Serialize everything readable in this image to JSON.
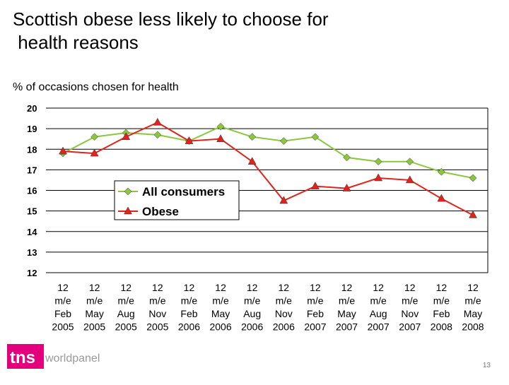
{
  "chart_data": {
    "type": "line",
    "title": "Scottish obese less likely to choose for health reasons",
    "subtitle": "% of occasions chosen for health",
    "categories": [
      [
        "12",
        "m/e",
        "Feb",
        "2005"
      ],
      [
        "12",
        "m/e",
        "May",
        "2005"
      ],
      [
        "12",
        "m/e",
        "Aug",
        "2005"
      ],
      [
        "12",
        "m/e",
        "Nov",
        "2005"
      ],
      [
        "12",
        "m/e",
        "Feb",
        "2006"
      ],
      [
        "12",
        "m/e",
        "May",
        "2006"
      ],
      [
        "12",
        "m/e",
        "Aug",
        "2006"
      ],
      [
        "12",
        "m/e",
        "Nov",
        "2006"
      ],
      [
        "12",
        "m/e",
        "Feb",
        "2007"
      ],
      [
        "12",
        "m/e",
        "May",
        "2007"
      ],
      [
        "12",
        "m/e",
        "Aug",
        "2007"
      ],
      [
        "12",
        "m/e",
        "Nov",
        "2007"
      ],
      [
        "12",
        "m/e",
        "Feb",
        "2008"
      ],
      [
        "12",
        "m/e",
        "May",
        "2008"
      ]
    ],
    "series": [
      {
        "name": "All consumers",
        "color": "#8cc63f",
        "marker": "diamond",
        "values": [
          17.8,
          18.6,
          18.8,
          18.7,
          18.4,
          19.1,
          18.6,
          18.4,
          18.6,
          17.6,
          17.4,
          17.4,
          16.9,
          16.6
        ]
      },
      {
        "name": "Obese",
        "color": "#e3231b",
        "marker": "triangle",
        "values": [
          17.9,
          17.8,
          18.6,
          19.3,
          18.4,
          18.5,
          17.4,
          15.5,
          16.2,
          16.1,
          16.6,
          16.5,
          15.6,
          14.8
        ]
      }
    ],
    "ylim": [
      12,
      20
    ],
    "yticks": [
      12,
      13,
      14,
      15,
      16,
      17,
      18,
      19,
      20
    ],
    "grid": true
  },
  "footer": {
    "logo_mark": "tns",
    "logo_text": "worldpanel",
    "page_number": "13"
  }
}
